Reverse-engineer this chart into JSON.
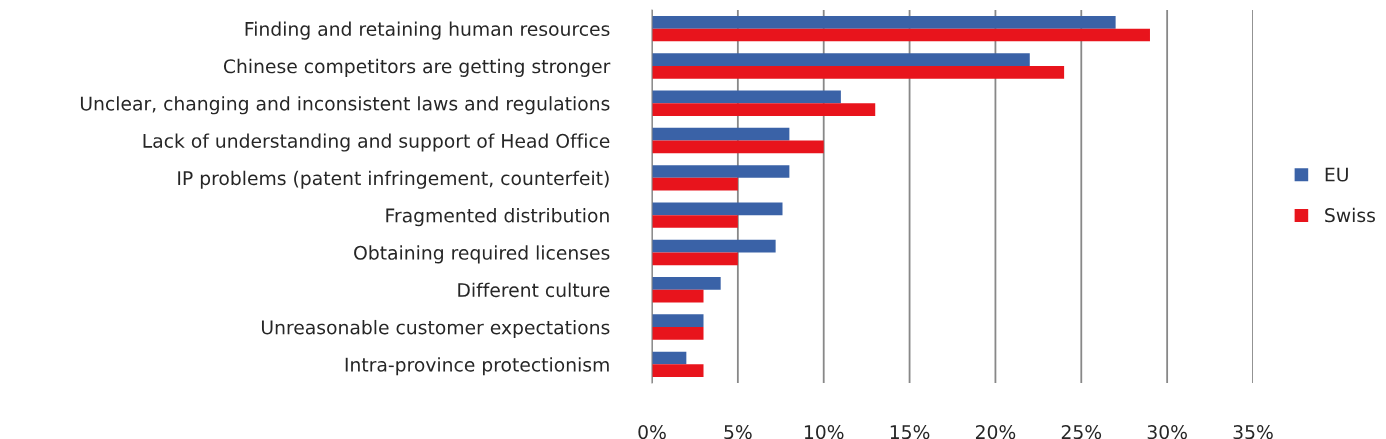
{
  "chart_data": {
    "type": "bar",
    "orientation": "horizontal",
    "categories": [
      "Finding and retaining human resources",
      "Chinese competitors are getting stronger",
      "Unclear, changing and inconsistent laws and regulations",
      "Lack of understanding and support of Head Office",
      "IP problems (patent infringement, counterfeit)",
      "Fragmented distribution",
      "Obtaining required licenses",
      "Different culture",
      "Unreasonable customer expectations",
      "Intra-province protectionism"
    ],
    "series": [
      {
        "name": "EU",
        "color": "#3a62a7",
        "values": [
          27,
          22,
          11,
          8,
          8,
          7.6,
          7.2,
          4,
          3,
          2
        ]
      },
      {
        "name": "Swiss",
        "color": "#e8141c",
        "values": [
          29,
          24,
          13,
          10,
          5,
          5,
          5,
          3,
          3,
          3
        ]
      }
    ],
    "xlim": [
      0,
      35
    ],
    "xticks": [
      {
        "value": 0,
        "label": "0%"
      },
      {
        "value": 5,
        "label": "5%"
      },
      {
        "value": 10,
        "label": "10%"
      },
      {
        "value": 15,
        "label": "15%"
      },
      {
        "value": 20,
        "label": "20%"
      },
      {
        "value": 25,
        "label": "25%"
      },
      {
        "value": 30,
        "label": "30%"
      },
      {
        "value": 35,
        "label": "35%"
      }
    ],
    "grid": "x",
    "legend": "right"
  }
}
